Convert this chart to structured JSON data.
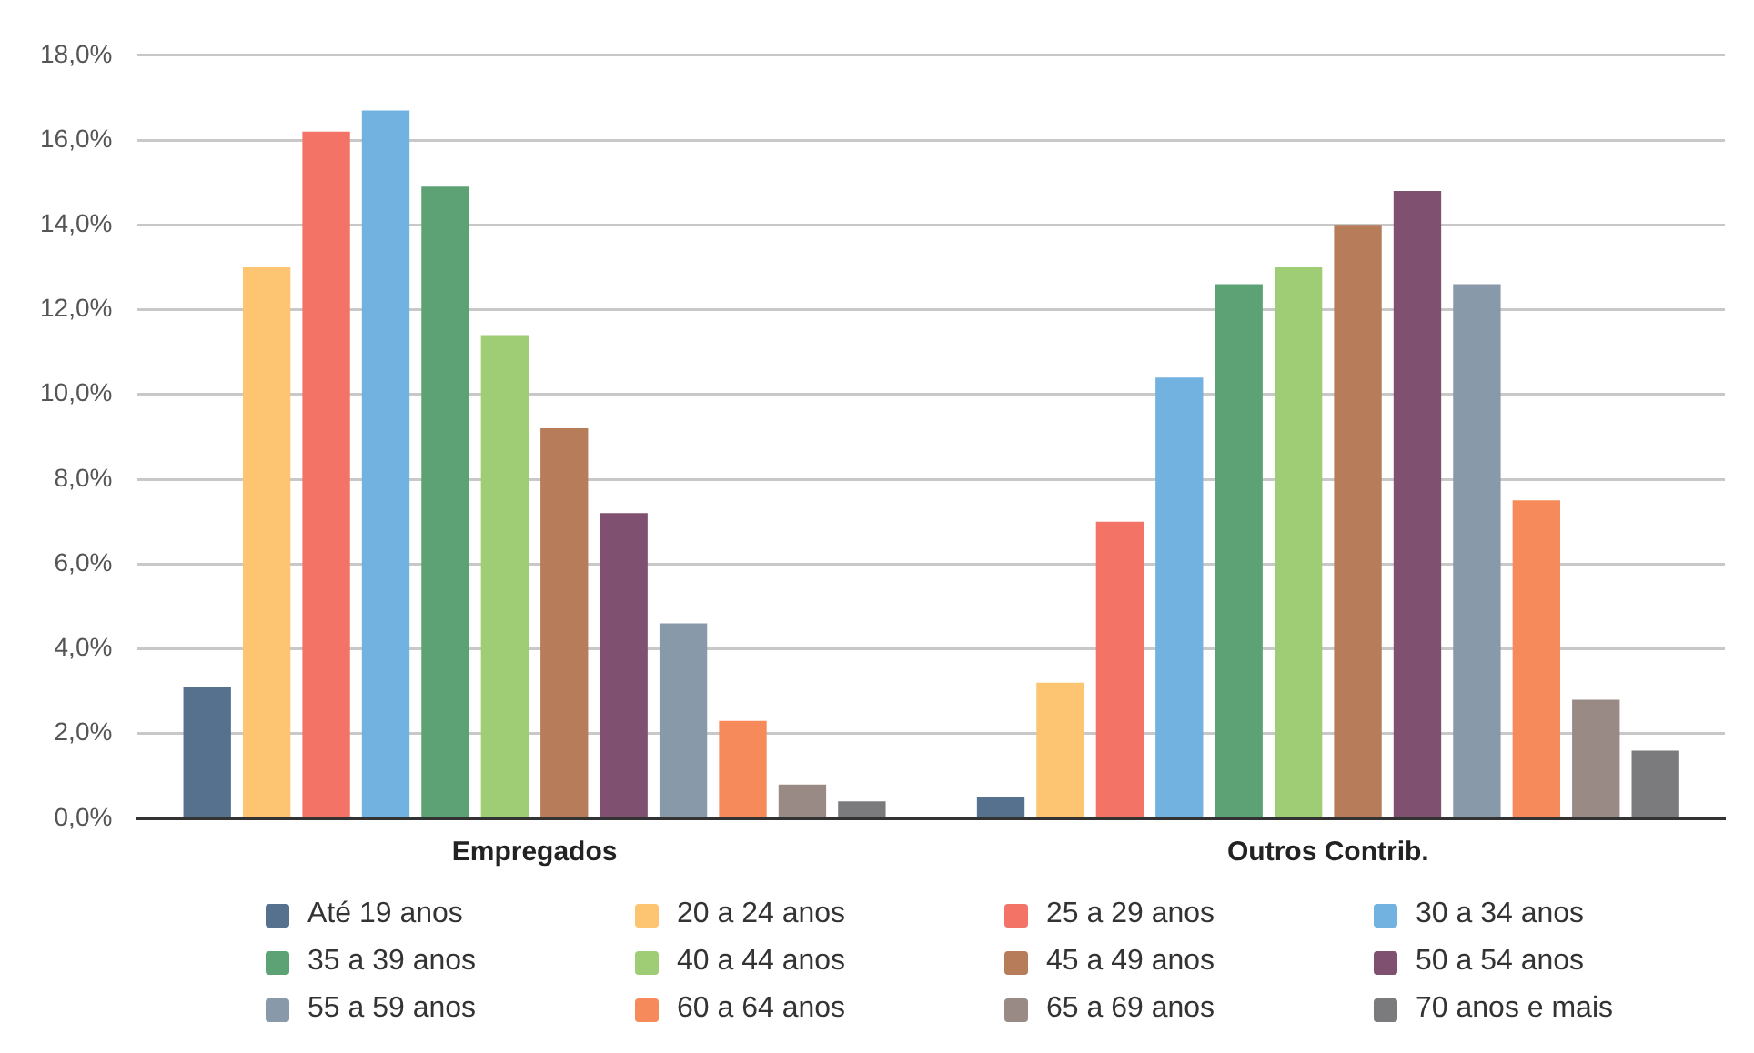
{
  "chart_data": {
    "type": "bar",
    "categories": [
      "Empregados",
      "Outros Contrib."
    ],
    "series": [
      {
        "name": "Até 19 anos",
        "color": "#56718e",
        "values": [
          3.1,
          0.5
        ]
      },
      {
        "name": "20 a 24 anos",
        "color": "#fdc572",
        "values": [
          13.0,
          3.2
        ]
      },
      {
        "name": "25 a 29 anos",
        "color": "#f37366",
        "values": [
          16.2,
          7.0
        ]
      },
      {
        "name": "30 a 34 anos",
        "color": "#72b2e1",
        "values": [
          16.7,
          10.4
        ]
      },
      {
        "name": "35 a 39 anos",
        "color": "#5ca274",
        "values": [
          14.9,
          12.6
        ]
      },
      {
        "name": "40 a 44 anos",
        "color": "#9ecd75",
        "values": [
          11.4,
          13.0
        ]
      },
      {
        "name": "45 a 49 anos",
        "color": "#b77c5a",
        "values": [
          9.2,
          14.0
        ]
      },
      {
        "name": "50 a 54 anos",
        "color": "#7f5070",
        "values": [
          7.2,
          14.8
        ]
      },
      {
        "name": "55 a 59 anos",
        "color": "#889aaa",
        "values": [
          4.6,
          12.6
        ]
      },
      {
        "name": "60 a 64 anos",
        "color": "#f78a5a",
        "values": [
          2.3,
          7.5
        ]
      },
      {
        "name": "65 a 69 anos",
        "color": "#9a8a85",
        "values": [
          0.8,
          2.8
        ]
      },
      {
        "name": "70 anos e mais",
        "color": "#7b7b7e",
        "values": [
          0.4,
          1.6
        ]
      }
    ],
    "ylim": [
      0,
      18
    ],
    "yticks": [
      {
        "value": 0,
        "label": "0,0%"
      },
      {
        "value": 2,
        "label": "2,0%"
      },
      {
        "value": 4,
        "label": "4,0%"
      },
      {
        "value": 6,
        "label": "6,0%"
      },
      {
        "value": 8,
        "label": "8,0%"
      },
      {
        "value": 10,
        "label": "10,0%"
      },
      {
        "value": 12,
        "label": "12,0%"
      },
      {
        "value": 14,
        "label": "14,0%"
      },
      {
        "value": 16,
        "label": "16,0%"
      },
      {
        "value": 18,
        "label": "18,0%"
      }
    ],
    "grid": "y",
    "legend": "bottom"
  }
}
